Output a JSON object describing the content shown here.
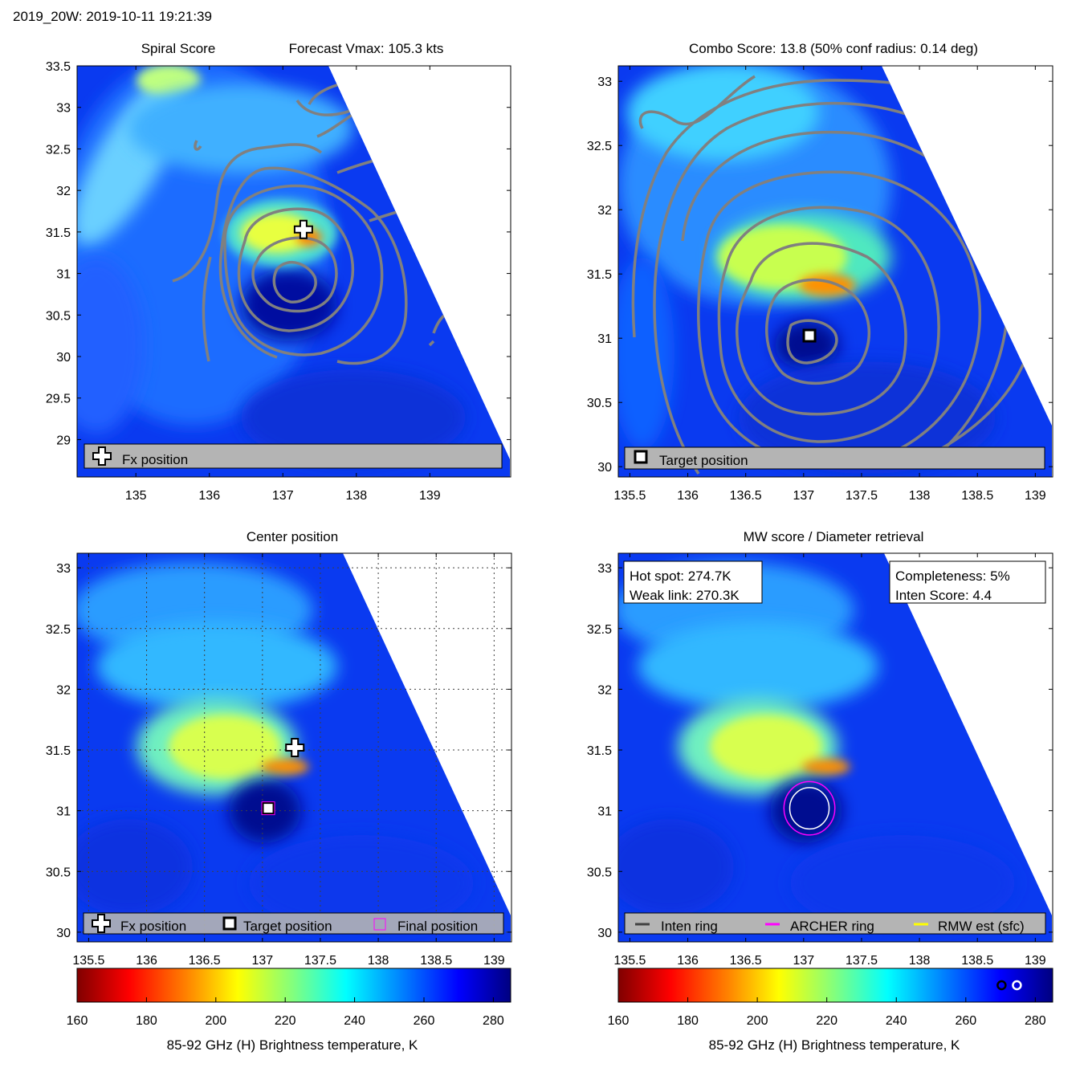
{
  "figure_title": "2019_20W: 2019-10-11 19:21:39",
  "colors": {
    "contour": "#808080",
    "legend_bg": "#b4b4b4",
    "inten_ring": "#404040",
    "archer_ring": "#ff00ff",
    "rmw_ring": "#ffff00",
    "colormap": [
      "#800000",
      "#ff0000",
      "#ff8000",
      "#ffff00",
      "#80ff80",
      "#00ffff",
      "#0080ff",
      "#0000ff",
      "#000080"
    ]
  },
  "panels": {
    "tl": {
      "title": "Spiral Score",
      "subtitle": "Forecast Vmax: 105.3 kts",
      "legend": {
        "items": [
          {
            "label": "Fx position",
            "symbol": "plus-icon"
          }
        ]
      }
    },
    "tr": {
      "title": "Combo Score: 13.8  (50% conf radius: 0.14 deg)",
      "legend": {
        "items": [
          {
            "label": "Target position",
            "symbol": "square-icon"
          }
        ]
      }
    },
    "bl": {
      "title": "Center position",
      "legend": {
        "items": [
          {
            "label": "Fx position",
            "symbol": "plus-icon"
          },
          {
            "label": "Target position",
            "symbol": "square-icon"
          },
          {
            "label": "Final position",
            "symbol": "magenta-square-icon"
          }
        ]
      }
    },
    "br": {
      "title": "MW score / Diameter retrieval",
      "info_left": [
        "Hot spot: 274.7K",
        "Weak link: 270.3K"
      ],
      "info_right": [
        "Completeness: 5%",
        "Inten Score: 4.4"
      ],
      "legend": {
        "items": [
          {
            "label": "Inten ring",
            "color": "#404040"
          },
          {
            "label": "ARCHER ring",
            "color": "#ff00ff"
          },
          {
            "label": "RMW est (sfc)",
            "color": "#ffff00"
          }
        ]
      }
    }
  },
  "colorbar_label": "85-92 GHz (H) Brightness temperature, K",
  "chart_data": [
    {
      "id": "tl",
      "type": "heatmap",
      "title": "Spiral Score",
      "subtitle": "Forecast Vmax: 105.3 kts",
      "xlim": [
        134.2,
        140.1
      ],
      "ylim": [
        28.55,
        33.5
      ],
      "xticks": [
        135,
        136,
        137,
        138,
        139
      ],
      "yticks": [
        29,
        29.5,
        30,
        30.5,
        31,
        31.5,
        32,
        32.5,
        33,
        33.5
      ],
      "grid": false,
      "markers": [
        {
          "name": "Fx position",
          "lon": 137.28,
          "lat": 31.53
        }
      ],
      "contour_center": {
        "lon": 137.0,
        "lat": 30.92
      },
      "hot_center": {
        "lon": 137.1,
        "lat": 31.45
      }
    },
    {
      "id": "tr",
      "type": "heatmap",
      "title": "Combo Score: 13.8  (50% conf radius: 0.14 deg)",
      "xlim": [
        135.4,
        139.15
      ],
      "ylim": [
        29.92,
        33.12
      ],
      "xticks": [
        135.5,
        136,
        136.5,
        137,
        137.5,
        138,
        138.5,
        139
      ],
      "yticks": [
        30,
        30.5,
        31,
        31.5,
        32,
        32.5,
        33
      ],
      "grid": false,
      "markers": [
        {
          "name": "Target position",
          "lon": 137.05,
          "lat": 31.02
        }
      ],
      "contour_center": {
        "lon": 137.05,
        "lat": 31.02
      },
      "hot_center": {
        "lon": 137.15,
        "lat": 31.42
      }
    },
    {
      "id": "bl",
      "type": "heatmap",
      "title": "Center position",
      "xlim": [
        135.4,
        139.15
      ],
      "ylim": [
        29.92,
        33.12
      ],
      "xticks": [
        135.5,
        136,
        136.5,
        137,
        137.5,
        138,
        138.5,
        139
      ],
      "yticks": [
        30,
        30.5,
        31,
        31.5,
        32,
        32.5,
        33
      ],
      "grid": true,
      "markers": [
        {
          "name": "Fx position",
          "lon": 137.28,
          "lat": 31.52
        },
        {
          "name": "Target position",
          "lon": 137.05,
          "lat": 31.02
        },
        {
          "name": "Final position",
          "lon": 137.05,
          "lat": 31.02
        }
      ],
      "hot_center": {
        "lon": 137.15,
        "lat": 31.38
      }
    },
    {
      "id": "br",
      "type": "heatmap",
      "title": "MW score / Diameter retrieval",
      "xlim": [
        135.4,
        139.15
      ],
      "ylim": [
        29.92,
        33.12
      ],
      "xticks": [
        135.5,
        136,
        136.5,
        137,
        137.5,
        138,
        138.5,
        139
      ],
      "yticks": [
        30,
        30.5,
        31,
        31.5,
        32,
        32.5,
        33
      ],
      "grid": false,
      "rings": [
        {
          "name": "ARCHER ring",
          "lon": 137.05,
          "lat": 31.02,
          "radius_deg": 0.22
        },
        {
          "name": "RMW est (sfc)",
          "lon": 137.05,
          "lat": 31.02,
          "radius_deg": 0.17
        }
      ],
      "hot_center": {
        "lon": 137.15,
        "lat": 31.38
      }
    }
  ],
  "colorbars": [
    {
      "id": "cb-left",
      "ticks": [
        160,
        180,
        200,
        220,
        240,
        260,
        280
      ],
      "range": [
        160,
        285
      ],
      "label": "85-92 GHz (H) Brightness temperature, K"
    },
    {
      "id": "cb-right",
      "ticks": [
        160,
        180,
        200,
        220,
        240,
        260,
        280
      ],
      "range": [
        160,
        285
      ],
      "label": "85-92 GHz (H) Brightness temperature, K",
      "markers": [
        {
          "name": "inten-marker",
          "value": 270.3
        },
        {
          "name": "hotspot-marker",
          "value": 274.7
        }
      ]
    }
  ]
}
